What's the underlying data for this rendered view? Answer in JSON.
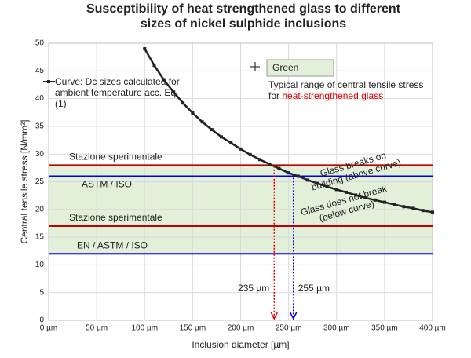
{
  "chart_data": {
    "type": "line",
    "title": "Susceptibility of heat strengthened glass to different sizes of nickel sulphide inclusions",
    "x_label": "Inclusion diameter [µm]",
    "y_label": "Central tensile stress [N/mm²]",
    "x": [
      100,
      110,
      120,
      130,
      140,
      150,
      160,
      170,
      180,
      190,
      200,
      210,
      220,
      230,
      240,
      250,
      260,
      270,
      280,
      290,
      300,
      310,
      320,
      330,
      340,
      350,
      360,
      370,
      380,
      390,
      400
    ],
    "series": [
      {
        "name": "Curve: Dc sizes calculated for ambient temperature acc. Eq. (1)",
        "color": "#222222",
        "values": [
          49.0,
          46.0,
          43.4,
          41.2,
          39.2,
          37.4,
          35.8,
          34.4,
          33.1,
          32.0,
          30.9,
          29.9,
          29.0,
          28.2,
          27.4,
          26.6,
          26.0,
          25.3,
          24.7,
          24.1,
          23.6,
          23.1,
          22.6,
          22.1,
          21.7,
          21.3,
          20.9,
          20.5,
          20.2,
          19.8,
          19.5
        ]
      }
    ],
    "xlim": [
      0,
      400
    ],
    "ylim": [
      0,
      50
    ],
    "xticks": [
      {
        "value": 0,
        "label": "0 µm"
      },
      {
        "value": 50,
        "label": "50 µm"
      },
      {
        "value": 100,
        "label": "100 µm"
      },
      {
        "value": 150,
        "label": "150 µm"
      },
      {
        "value": 200,
        "label": "200 µm"
      },
      {
        "value": 250,
        "label": "250 µm"
      },
      {
        "value": 300,
        "label": "300 µm"
      },
      {
        "value": 350,
        "label": "350 µm"
      },
      {
        "value": 400,
        "label": "400 µm"
      }
    ],
    "yticks": [
      0,
      5,
      10,
      15,
      20,
      25,
      30,
      35,
      40,
      45,
      50
    ],
    "grid": true,
    "band": {
      "name": "Green",
      "ymin": 12,
      "ymax": 28,
      "color": "#e2f0d9"
    },
    "band_note": "Typical range of central tensile stress for",
    "band_note_highlight": "heat-strengthened glass",
    "reference_lines": [
      {
        "label": "Stazione sperimentale",
        "value": 28,
        "color": "#c00000"
      },
      {
        "label": "ASTM / ISO",
        "value": 26,
        "color": "#0000e0"
      },
      {
        "label": "Stazione sperimentale",
        "value": 17,
        "color": "#c00000"
      },
      {
        "label": "EN / ASTM / ISO",
        "value": 12,
        "color": "#0000e0"
      }
    ],
    "vertical_markers": [
      {
        "value": 235,
        "label": "235 µm",
        "color": "#e00000"
      },
      {
        "value": 255,
        "label": "255 µm",
        "color": "#0000e0"
      }
    ],
    "annotations": [
      {
        "lines": [
          "Glass breaks on",
          "building (above curve)"
        ]
      },
      {
        "lines": [
          "Glass does not break",
          "(below curve)"
        ]
      }
    ]
  }
}
